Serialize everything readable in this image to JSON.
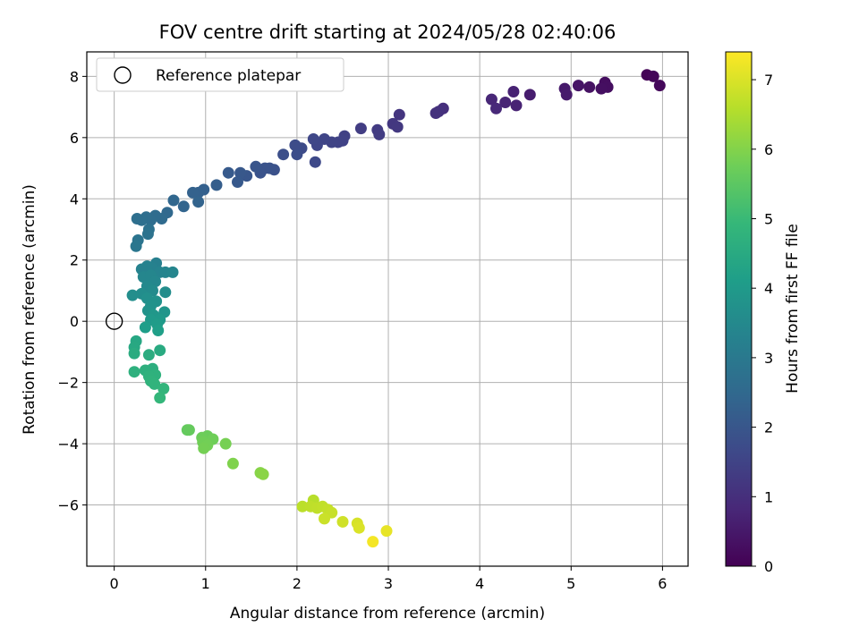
{
  "chart_data": {
    "type": "scatter",
    "title": "FOV centre drift starting at 2024/05/28 02:40:06",
    "xlabel": "Angular distance from reference (arcmin)",
    "ylabel": "Rotation from reference (arcmin)",
    "xlim": [
      -0.3,
      6.28
    ],
    "ylim": [
      -8.0,
      8.8
    ],
    "xticks": [
      0,
      1,
      2,
      3,
      4,
      5,
      6
    ],
    "yticks": [
      -6,
      -4,
      -2,
      0,
      2,
      4,
      6,
      8
    ],
    "xtick_labels": [
      "0",
      "1",
      "2",
      "3",
      "4",
      "5",
      "6"
    ],
    "ytick_labels": [
      "−6",
      "−4",
      "−2",
      "0",
      "2",
      "4",
      "6",
      "8"
    ],
    "grid": true,
    "colormap": "viridis",
    "colorbar": {
      "label": "Hours from first FF file",
      "range": [
        0,
        7.4
      ],
      "ticks": [
        0,
        1,
        2,
        3,
        4,
        5,
        6,
        7
      ],
      "tick_labels": [
        "0",
        "1",
        "2",
        "3",
        "4",
        "5",
        "6",
        "7"
      ]
    },
    "legend": {
      "position": "top-left",
      "entries": [
        "Reference platepar"
      ]
    },
    "reference_point": {
      "x": 0,
      "y": 0
    },
    "points": [
      {
        "x": 5.83,
        "y": 8.05,
        "h": 0.05
      },
      {
        "x": 5.9,
        "y": 8.0,
        "h": 0.1
      },
      {
        "x": 5.97,
        "y": 7.7,
        "h": 0.15
      },
      {
        "x": 5.37,
        "y": 7.8,
        "h": 0.25
      },
      {
        "x": 5.4,
        "y": 7.65,
        "h": 0.28
      },
      {
        "x": 5.33,
        "y": 7.6,
        "h": 0.3
      },
      {
        "x": 5.2,
        "y": 7.65,
        "h": 0.35
      },
      {
        "x": 5.08,
        "y": 7.7,
        "h": 0.4
      },
      {
        "x": 4.93,
        "y": 7.6,
        "h": 0.5
      },
      {
        "x": 4.95,
        "y": 7.4,
        "h": 0.55
      },
      {
        "x": 4.55,
        "y": 7.4,
        "h": 0.6
      },
      {
        "x": 4.37,
        "y": 7.5,
        "h": 0.7
      },
      {
        "x": 4.4,
        "y": 7.05,
        "h": 0.72
      },
      {
        "x": 4.28,
        "y": 7.15,
        "h": 0.75
      },
      {
        "x": 4.13,
        "y": 7.25,
        "h": 0.8
      },
      {
        "x": 4.18,
        "y": 6.95,
        "h": 0.85
      },
      {
        "x": 3.6,
        "y": 6.95,
        "h": 1.0
      },
      {
        "x": 3.55,
        "y": 6.85,
        "h": 1.05
      },
      {
        "x": 3.52,
        "y": 6.8,
        "h": 1.08
      },
      {
        "x": 3.12,
        "y": 6.75,
        "h": 1.15
      },
      {
        "x": 3.05,
        "y": 6.45,
        "h": 1.2
      },
      {
        "x": 3.1,
        "y": 6.35,
        "h": 1.22
      },
      {
        "x": 2.88,
        "y": 6.25,
        "h": 1.3
      },
      {
        "x": 2.9,
        "y": 6.1,
        "h": 1.32
      },
      {
        "x": 2.7,
        "y": 6.3,
        "h": 1.35
      },
      {
        "x": 2.52,
        "y": 6.05,
        "h": 1.45
      },
      {
        "x": 2.5,
        "y": 5.9,
        "h": 1.48
      },
      {
        "x": 2.45,
        "y": 5.85,
        "h": 1.5
      },
      {
        "x": 2.38,
        "y": 5.85,
        "h": 1.52
      },
      {
        "x": 2.3,
        "y": 5.95,
        "h": 1.55
      },
      {
        "x": 2.22,
        "y": 5.75,
        "h": 1.58
      },
      {
        "x": 2.18,
        "y": 5.95,
        "h": 1.6
      },
      {
        "x": 2.2,
        "y": 5.2,
        "h": 1.65
      },
      {
        "x": 2.05,
        "y": 5.65,
        "h": 1.7
      },
      {
        "x": 1.98,
        "y": 5.75,
        "h": 1.72
      },
      {
        "x": 2.0,
        "y": 5.45,
        "h": 1.75
      },
      {
        "x": 1.85,
        "y": 5.45,
        "h": 1.8
      },
      {
        "x": 1.75,
        "y": 4.95,
        "h": 1.85
      },
      {
        "x": 1.7,
        "y": 5.0,
        "h": 1.88
      },
      {
        "x": 1.65,
        "y": 5.0,
        "h": 1.9
      },
      {
        "x": 1.6,
        "y": 4.85,
        "h": 1.92
      },
      {
        "x": 1.55,
        "y": 5.05,
        "h": 1.95
      },
      {
        "x": 1.45,
        "y": 4.75,
        "h": 2.0
      },
      {
        "x": 1.38,
        "y": 4.85,
        "h": 2.05
      },
      {
        "x": 1.35,
        "y": 4.55,
        "h": 2.08
      },
      {
        "x": 1.25,
        "y": 4.85,
        "h": 2.1
      },
      {
        "x": 1.12,
        "y": 4.45,
        "h": 2.2
      },
      {
        "x": 0.98,
        "y": 4.3,
        "h": 2.25
      },
      {
        "x": 0.92,
        "y": 4.2,
        "h": 2.28
      },
      {
        "x": 0.86,
        "y": 4.2,
        "h": 2.3
      },
      {
        "x": 0.92,
        "y": 3.9,
        "h": 2.35
      },
      {
        "x": 0.76,
        "y": 3.75,
        "h": 2.4
      },
      {
        "x": 0.65,
        "y": 3.95,
        "h": 2.45
      },
      {
        "x": 0.58,
        "y": 3.55,
        "h": 2.5
      },
      {
        "x": 0.52,
        "y": 3.35,
        "h": 2.55
      },
      {
        "x": 0.45,
        "y": 3.45,
        "h": 2.6
      },
      {
        "x": 0.4,
        "y": 3.3,
        "h": 2.62
      },
      {
        "x": 0.35,
        "y": 3.4,
        "h": 2.65
      },
      {
        "x": 0.3,
        "y": 3.3,
        "h": 2.68
      },
      {
        "x": 0.25,
        "y": 3.35,
        "h": 2.7
      },
      {
        "x": 0.38,
        "y": 3.0,
        "h": 2.75
      },
      {
        "x": 0.37,
        "y": 2.85,
        "h": 2.8
      },
      {
        "x": 0.26,
        "y": 2.65,
        "h": 2.85
      },
      {
        "x": 0.24,
        "y": 2.45,
        "h": 2.9
      },
      {
        "x": 0.46,
        "y": 1.9,
        "h": 3.2
      },
      {
        "x": 0.41,
        "y": 1.75,
        "h": 3.25
      },
      {
        "x": 0.36,
        "y": 1.8,
        "h": 3.28
      },
      {
        "x": 0.3,
        "y": 1.7,
        "h": 3.3
      },
      {
        "x": 0.5,
        "y": 1.6,
        "h": 3.32
      },
      {
        "x": 0.56,
        "y": 1.6,
        "h": 3.35
      },
      {
        "x": 0.64,
        "y": 1.6,
        "h": 3.38
      },
      {
        "x": 0.32,
        "y": 1.45,
        "h": 3.4
      },
      {
        "x": 0.4,
        "y": 1.5,
        "h": 3.42
      },
      {
        "x": 0.45,
        "y": 1.3,
        "h": 3.45
      },
      {
        "x": 0.36,
        "y": 1.15,
        "h": 3.5
      },
      {
        "x": 0.42,
        "y": 1.0,
        "h": 3.55
      },
      {
        "x": 0.56,
        "y": 0.95,
        "h": 3.6
      },
      {
        "x": 0.3,
        "y": 0.9,
        "h": 3.62
      },
      {
        "x": 0.2,
        "y": 0.85,
        "h": 3.65
      },
      {
        "x": 0.36,
        "y": 0.75,
        "h": 3.7
      },
      {
        "x": 0.46,
        "y": 0.65,
        "h": 3.72
      },
      {
        "x": 0.4,
        "y": 0.5,
        "h": 3.75
      },
      {
        "x": 0.37,
        "y": 0.35,
        "h": 3.8
      },
      {
        "x": 0.55,
        "y": 0.3,
        "h": 3.85
      },
      {
        "x": 0.43,
        "y": 0.2,
        "h": 3.9
      },
      {
        "x": 0.5,
        "y": 0.05,
        "h": 3.95
      },
      {
        "x": 0.4,
        "y": 0.05,
        "h": 4.0
      },
      {
        "x": 0.47,
        "y": -0.1,
        "h": 4.05
      },
      {
        "x": 0.34,
        "y": -0.2,
        "h": 4.1
      },
      {
        "x": 0.48,
        "y": -0.3,
        "h": 4.15
      },
      {
        "x": 0.24,
        "y": -0.65,
        "h": 4.4
      },
      {
        "x": 0.22,
        "y": -0.85,
        "h": 4.45
      },
      {
        "x": 0.5,
        "y": -0.95,
        "h": 4.5
      },
      {
        "x": 0.22,
        "y": -1.05,
        "h": 4.55
      },
      {
        "x": 0.38,
        "y": -1.1,
        "h": 4.58
      },
      {
        "x": 0.42,
        "y": -1.55,
        "h": 4.65
      },
      {
        "x": 0.34,
        "y": -1.6,
        "h": 4.68
      },
      {
        "x": 0.22,
        "y": -1.65,
        "h": 4.7
      },
      {
        "x": 0.45,
        "y": -1.75,
        "h": 4.72
      },
      {
        "x": 0.38,
        "y": -1.8,
        "h": 4.75
      },
      {
        "x": 0.4,
        "y": -1.95,
        "h": 4.78
      },
      {
        "x": 0.44,
        "y": -2.05,
        "h": 4.8
      },
      {
        "x": 0.54,
        "y": -2.2,
        "h": 4.85
      },
      {
        "x": 0.5,
        "y": -2.5,
        "h": 4.9
      },
      {
        "x": 0.8,
        "y": -3.55,
        "h": 5.6
      },
      {
        "x": 0.82,
        "y": -3.55,
        "h": 5.62
      },
      {
        "x": 1.02,
        "y": -3.75,
        "h": 5.7
      },
      {
        "x": 0.96,
        "y": -3.8,
        "h": 5.72
      },
      {
        "x": 1.08,
        "y": -3.85,
        "h": 5.75
      },
      {
        "x": 0.97,
        "y": -3.95,
        "h": 5.78
      },
      {
        "x": 1.02,
        "y": -4.05,
        "h": 5.8
      },
      {
        "x": 0.98,
        "y": -4.15,
        "h": 5.82
      },
      {
        "x": 1.22,
        "y": -4.0,
        "h": 5.85
      },
      {
        "x": 1.3,
        "y": -4.65,
        "h": 5.95
      },
      {
        "x": 1.6,
        "y": -4.95,
        "h": 6.05
      },
      {
        "x": 1.63,
        "y": -5.0,
        "h": 6.08
      },
      {
        "x": 2.18,
        "y": -5.85,
        "h": 6.6
      },
      {
        "x": 2.06,
        "y": -6.05,
        "h": 6.65
      },
      {
        "x": 2.15,
        "y": -6.05,
        "h": 6.68
      },
      {
        "x": 2.22,
        "y": -6.1,
        "h": 6.7
      },
      {
        "x": 2.28,
        "y": -6.05,
        "h": 6.72
      },
      {
        "x": 2.34,
        "y": -6.15,
        "h": 6.75
      },
      {
        "x": 2.38,
        "y": -6.25,
        "h": 6.78
      },
      {
        "x": 2.3,
        "y": -6.45,
        "h": 6.82
      },
      {
        "x": 2.5,
        "y": -6.55,
        "h": 6.88
      },
      {
        "x": 2.66,
        "y": -6.6,
        "h": 6.95
      },
      {
        "x": 2.68,
        "y": -6.75,
        "h": 7.0
      },
      {
        "x": 2.98,
        "y": -6.85,
        "h": 7.15
      },
      {
        "x": 2.83,
        "y": -7.2,
        "h": 7.3
      }
    ]
  }
}
